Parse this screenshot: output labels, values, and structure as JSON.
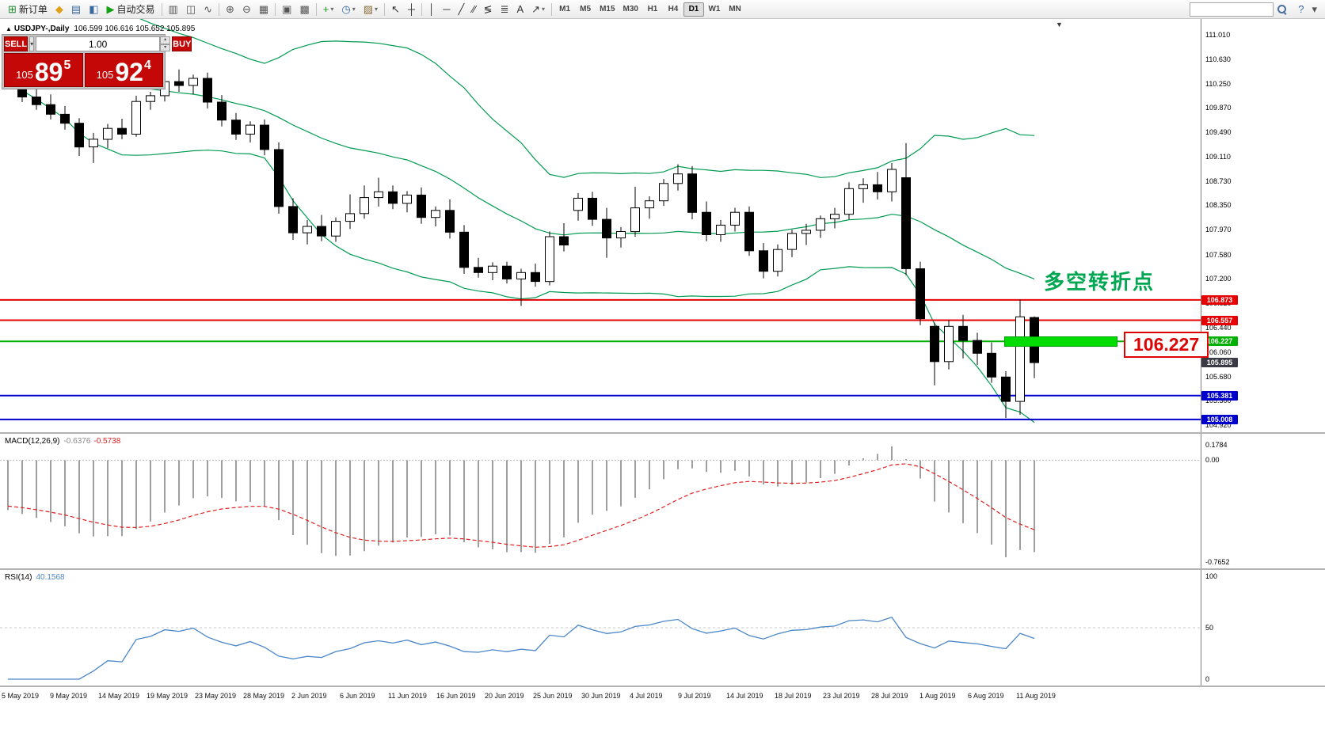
{
  "icons": {
    "info_arrow": "▲",
    "shift_marker": "▼",
    "caret_down": "▾",
    "spin_up": "▴",
    "spin_down": "▾"
  },
  "toolbar": {
    "items": [
      {
        "name": "new-order-button",
        "glyph": "⊞",
        "color": "#1c8a2e",
        "label": "新订单"
      },
      {
        "name": "alerts-icon",
        "glyph": "◆",
        "color": "#dfa116"
      },
      {
        "name": "market-watch-icon",
        "glyph": "▤",
        "color": "#39679e"
      },
      {
        "name": "navigator-icon",
        "glyph": "◧",
        "color": "#39679e"
      },
      {
        "name": "autotrading-button",
        "glyph": "▶",
        "color": "#15a015",
        "label": "自动交易"
      },
      {
        "sep": true
      },
      {
        "name": "bar-chart-icon",
        "glyph": "▥",
        "color": "#555555"
      },
      {
        "name": "candlestick-chart-icon",
        "glyph": "◫",
        "color": "#555555"
      },
      {
        "name": "line-chart-icon",
        "glyph": "∿",
        "color": "#555555"
      },
      {
        "sep": true
      },
      {
        "name": "zoom-in-icon",
        "glyph": "⊕",
        "color": "#555555"
      },
      {
        "name": "zoom-out-icon",
        "glyph": "⊖",
        "color": "#555555"
      },
      {
        "name": "tile-windows-icon",
        "glyph": "▦",
        "color": "#555555"
      },
      {
        "sep": true
      },
      {
        "name": "new-chart-icon",
        "glyph": "▣",
        "color": "#555555"
      },
      {
        "name": "profiles-icon",
        "glyph": "▩",
        "color": "#555555"
      },
      {
        "sep": true
      },
      {
        "name": "indicators-button",
        "glyph": "+",
        "color": "#15a015",
        "caret": true
      },
      {
        "name": "periods-button",
        "glyph": "◷",
        "color": "#39679e",
        "caret": true
      },
      {
        "name": "templates-button",
        "glyph": "▨",
        "color": "#8a6d3b",
        "caret": true
      },
      {
        "sep": true
      },
      {
        "name": "cursor-icon",
        "glyph": "↖",
        "color": "#333333"
      },
      {
        "name": "crosshair-icon",
        "glyph": "┼",
        "color": "#333333"
      },
      {
        "sep": true
      },
      {
        "name": "vertical-line-icon",
        "glyph": "│",
        "color": "#333333"
      },
      {
        "name": "horizontal-line-icon",
        "glyph": "─",
        "color": "#333333"
      },
      {
        "name": "trendline-icon",
        "glyph": "╱",
        "color": "#333333"
      },
      {
        "name": "equidistant-channel-icon",
        "glyph": "∕∕",
        "color": "#333333"
      },
      {
        "name": "fibonacci-icon",
        "glyph": "≶",
        "color": "#333333"
      },
      {
        "name": "cycle-lines-icon",
        "glyph": "≣",
        "color": "#333333"
      },
      {
        "name": "text-icon",
        "glyph": "A",
        "color": "#333333"
      },
      {
        "name": "arrows-icon",
        "glyph": "↗",
        "color": "#333333",
        "caret": true
      },
      {
        "sep": true
      },
      {
        "timeframes": true
      },
      {
        "spacer": true
      },
      {
        "search": true
      },
      {
        "name": "help-icon",
        "glyph": "?",
        "color": "#39679e"
      },
      {
        "name": "overflow-caret-icon",
        "glyph": "▾",
        "color": "#555555"
      }
    ],
    "timeframes": {
      "items": [
        "M1",
        "M5",
        "M15",
        "M30",
        "H1",
        "H4",
        "D1",
        "W1",
        "MN"
      ],
      "active": "D1"
    },
    "search": {
      "placeholder": ""
    }
  },
  "trade_panel": {
    "sell_label": "SELL",
    "buy_label": "BUY",
    "lot_size": "1.00",
    "sell_price": {
      "figure": "105",
      "pips": "89",
      "point": "5"
    },
    "buy_price": {
      "figure": "105",
      "pips": "92",
      "point": "4"
    },
    "panel_color": "#c40808"
  },
  "annotations": {
    "turning_point": "多空转折点",
    "turning_point_color": "#00a651",
    "price_callout": "106.227",
    "highlight_bar_price": 106.227,
    "highlight_bar_color": "#00dc00"
  },
  "chart_data": {
    "type": "candlestick",
    "symbol_label": "USDJPY-,Daily",
    "ohlc_label": "106.599 106.616 105.652 105.895",
    "info": {
      "open": "106.599",
      "high": "106.616",
      "low": "105.652",
      "close": "105.895"
    },
    "ylim": [
      104.81,
      111.21
    ],
    "price_axis": [
      "111.010",
      "110.630",
      "110.250",
      "109.870",
      "109.490",
      "109.110",
      "108.730",
      "108.350",
      "107.970",
      "107.580",
      "107.200",
      "106.820",
      "106.440",
      "106.060",
      "105.680",
      "105.300",
      "104.920"
    ],
    "dates": [
      "5 May 2019",
      "9 May 2019",
      "14 May 2019",
      "19 May 2019",
      "23 May 2019",
      "28 May 2019",
      "2 Jun 2019",
      "6 Jun 2019",
      "11 Jun 2019",
      "16 Jun 2019",
      "20 Jun 2019",
      "25 Jun 2019",
      "30 Jun 2019",
      "4 Jul 2019",
      "9 Jul 2019",
      "14 Jul 2019",
      "18 Jul 2019",
      "23 Jul 2019",
      "28 Jul 2019",
      "1 Aug 2019",
      "6 Aug 2019",
      "11 Aug 2019"
    ],
    "candles": [
      [
        110.45,
        110.58,
        110.21,
        110.3
      ],
      [
        110.3,
        110.42,
        109.96,
        110.04
      ],
      [
        110.04,
        110.16,
        109.84,
        109.92
      ],
      [
        109.92,
        110.08,
        109.69,
        109.77
      ],
      [
        109.77,
        109.9,
        109.53,
        109.63
      ],
      [
        109.63,
        109.71,
        109.12,
        109.26
      ],
      [
        109.26,
        109.48,
        109.01,
        109.38
      ],
      [
        109.38,
        109.62,
        109.24,
        109.55
      ],
      [
        109.55,
        109.7,
        109.38,
        109.46
      ],
      [
        109.46,
        110.06,
        109.42,
        109.97
      ],
      [
        109.97,
        110.12,
        109.84,
        110.06
      ],
      [
        110.06,
        110.33,
        109.97,
        110.28
      ],
      [
        110.28,
        110.47,
        110.12,
        110.22
      ],
      [
        110.22,
        110.39,
        110.08,
        110.33
      ],
      [
        110.33,
        110.42,
        109.86,
        109.96
      ],
      [
        109.96,
        110.07,
        109.58,
        109.68
      ],
      [
        109.68,
        109.79,
        109.37,
        109.46
      ],
      [
        109.46,
        109.66,
        109.33,
        109.6
      ],
      [
        109.6,
        109.69,
        109.13,
        109.22
      ],
      [
        109.22,
        109.33,
        108.22,
        108.33
      ],
      [
        108.33,
        108.46,
        107.81,
        107.92
      ],
      [
        107.92,
        108.12,
        107.74,
        108.02
      ],
      [
        108.02,
        108.2,
        107.79,
        107.87
      ],
      [
        107.87,
        108.16,
        107.78,
        108.1
      ],
      [
        108.1,
        108.52,
        107.98,
        108.22
      ],
      [
        108.22,
        108.66,
        108.14,
        108.47
      ],
      [
        108.47,
        108.78,
        108.33,
        108.56
      ],
      [
        108.56,
        108.66,
        108.29,
        108.38
      ],
      [
        108.38,
        108.57,
        108.24,
        108.51
      ],
      [
        108.51,
        108.63,
        108.06,
        108.16
      ],
      [
        108.16,
        108.33,
        108.02,
        108.27
      ],
      [
        108.27,
        108.44,
        107.83,
        107.93
      ],
      [
        107.93,
        108.04,
        107.28,
        107.38
      ],
      [
        107.38,
        107.53,
        107.22,
        107.3
      ],
      [
        107.3,
        107.46,
        107.18,
        107.4
      ],
      [
        107.4,
        107.47,
        107.13,
        107.2
      ],
      [
        107.2,
        107.36,
        106.78,
        107.3
      ],
      [
        107.3,
        107.44,
        107.08,
        107.16
      ],
      [
        107.16,
        107.94,
        107.1,
        107.86
      ],
      [
        107.86,
        108.07,
        107.63,
        107.73
      ],
      [
        108.27,
        108.54,
        108.11,
        108.46
      ],
      [
        108.46,
        108.56,
        108.03,
        108.13
      ],
      [
        108.13,
        108.31,
        107.53,
        107.84
      ],
      [
        107.84,
        108.01,
        107.69,
        107.94
      ],
      [
        107.94,
        108.64,
        107.86,
        108.31
      ],
      [
        108.31,
        108.49,
        108.14,
        108.42
      ],
      [
        108.42,
        108.76,
        108.34,
        108.69
      ],
      [
        108.69,
        108.99,
        108.58,
        108.84
      ],
      [
        108.84,
        108.96,
        108.13,
        108.24
      ],
      [
        108.24,
        108.41,
        107.79,
        107.89
      ],
      [
        107.89,
        108.12,
        107.78,
        108.04
      ],
      [
        108.04,
        108.31,
        107.94,
        108.24
      ],
      [
        108.24,
        108.33,
        107.56,
        107.64
      ],
      [
        107.64,
        107.76,
        107.21,
        107.32
      ],
      [
        107.32,
        107.74,
        107.24,
        107.66
      ],
      [
        107.66,
        107.97,
        107.54,
        107.91
      ],
      [
        107.91,
        108.06,
        107.73,
        107.96
      ],
      [
        107.96,
        108.19,
        107.84,
        108.14
      ],
      [
        108.14,
        108.31,
        107.99,
        108.21
      ],
      [
        108.21,
        108.71,
        108.13,
        108.61
      ],
      [
        108.61,
        108.77,
        108.39,
        108.67
      ],
      [
        108.67,
        108.87,
        108.44,
        108.56
      ],
      [
        108.56,
        109.01,
        108.41,
        108.91
      ],
      [
        108.78,
        109.32,
        107.26,
        107.36
      ],
      [
        107.36,
        107.47,
        106.48,
        106.58
      ],
      [
        106.46,
        106.52,
        105.54,
        105.91
      ],
      [
        105.91,
        106.56,
        105.79,
        106.46
      ],
      [
        106.46,
        106.64,
        105.96,
        106.24
      ],
      [
        106.24,
        106.36,
        105.86,
        106.04
      ],
      [
        106.04,
        106.21,
        105.58,
        105.67
      ],
      [
        105.67,
        105.76,
        105.03,
        105.29
      ],
      [
        105.29,
        106.88,
        105.08,
        106.61
      ],
      [
        106.599,
        106.616,
        105.652,
        105.895
      ]
    ],
    "levels": [
      {
        "price": 106.873,
        "label": "106.873",
        "color": "#e60000",
        "width": 2
      },
      {
        "price": 106.557,
        "label": "106.557",
        "color": "#e60000",
        "width": 2
      },
      {
        "price": 106.227,
        "label": "106.227",
        "color": "#00b000",
        "width": 2
      },
      {
        "price": 105.381,
        "label": "105.381",
        "color": "#0000cc",
        "width": 2
      },
      {
        "price": 105.008,
        "label": "105.008",
        "color": "#0000cc",
        "width": 2
      }
    ],
    "current_price": {
      "value": 105.895,
      "label": "105.895",
      "tag_color": "#3a3a44"
    },
    "indicators": {
      "bollinger": {
        "period": 20,
        "deviation": 2,
        "color": "#009a50"
      },
      "macd": {
        "label": "MACD(12,26,9)",
        "value_main": "-0.6376",
        "value_signal": "-0.5738",
        "axis": [
          "0.1784",
          "0.00",
          "-0.7652"
        ],
        "histogram_color": "#9e9e9e",
        "signal_color": "#e02020"
      },
      "rsi": {
        "label": "RSI(14)",
        "value": "40.1568",
        "axis": [
          "100",
          "50",
          "0"
        ],
        "color": "#4a86c8",
        "level": 50
      }
    },
    "colors": {
      "bull": "#ffffff",
      "bear": "#000000"
    }
  }
}
